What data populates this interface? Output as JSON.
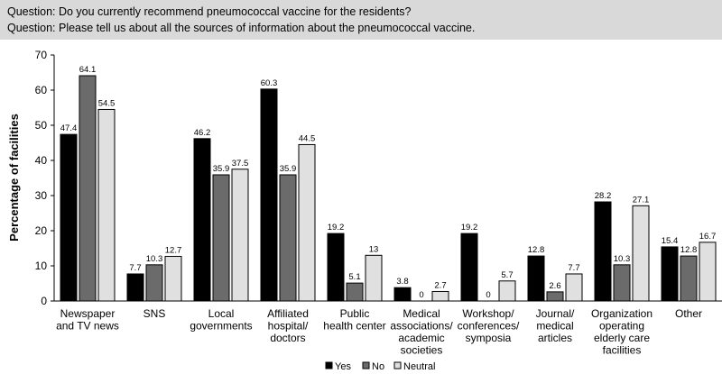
{
  "header": {
    "line1": "Question: Do you currently recommend pneumococcal vaccine for the residents?",
    "line2": "Question: Please tell us about all the sources of information about the pneumococcal vaccine."
  },
  "chart_data": {
    "type": "bar",
    "title": "",
    "xlabel": "",
    "ylabel": "Percentage of facilities",
    "ylim": [
      0,
      70
    ],
    "yticks": [
      0,
      10,
      20,
      30,
      40,
      50,
      60,
      70
    ],
    "categories": [
      [
        "Newspaper",
        "and TV news"
      ],
      [
        "SNS"
      ],
      [
        "Local",
        "governments"
      ],
      [
        "Affiliated",
        "hospital/",
        "doctors"
      ],
      [
        "Public",
        "health center"
      ],
      [
        "Medical",
        "associations/",
        "academic",
        "societies"
      ],
      [
        "Workshop/",
        "conferences/",
        "symposia"
      ],
      [
        "Journal/",
        "medical",
        "articles"
      ],
      [
        "Organization",
        "operating",
        "elderly care",
        "facilities"
      ],
      [
        "Other"
      ]
    ],
    "series": [
      {
        "name": "Yes",
        "color": "#000000",
        "values": [
          47.4,
          7.7,
          46.2,
          60.3,
          19.2,
          3.8,
          19.2,
          12.8,
          28.2,
          15.4
        ],
        "labels": [
          "47.4",
          "7.7",
          "46.2",
          "60.3",
          "19.2",
          "3.8",
          "19.2",
          "12.8",
          "28.2",
          "15.4"
        ]
      },
      {
        "name": "No",
        "color": "#6b6b6b",
        "values": [
          64.1,
          10.3,
          35.9,
          35.9,
          5.1,
          0,
          0,
          2.6,
          10.3,
          12.8
        ],
        "labels": [
          "64.1",
          "10.3",
          "35.9",
          "35.9",
          "5.1",
          "0",
          "0",
          "2.6",
          "10.3",
          "12.8"
        ]
      },
      {
        "name": "Neutral",
        "color": "#e0e0e0",
        "values": [
          54.5,
          12.7,
          37.5,
          44.5,
          13,
          2.7,
          5.7,
          7.7,
          27.1,
          16.7
        ],
        "labels": [
          "54.5",
          "12.7",
          "37.5",
          "44.5",
          "13",
          "2.7",
          "5.7",
          "7.7",
          "27.1",
          "16.7"
        ]
      }
    ],
    "legend": {
      "placement": "bottom-center",
      "labels": [
        "Yes",
        "No",
        "Neutral"
      ]
    }
  }
}
